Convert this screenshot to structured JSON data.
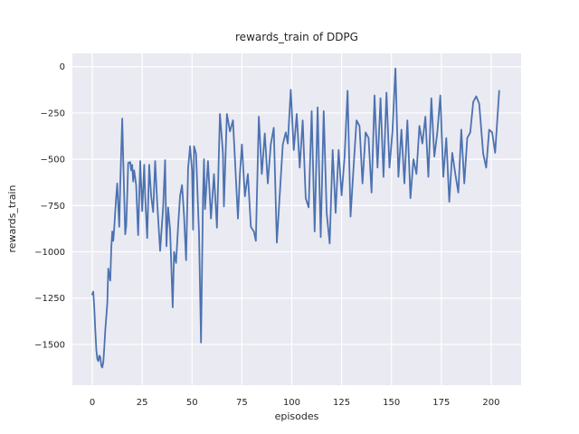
{
  "figure": {
    "background": "#ffffff"
  },
  "chart_data": {
    "type": "line",
    "title": "rewards_train of DDPG",
    "xlabel": "episodes",
    "ylabel": "rewards_train",
    "style": "seaborn-darkgrid",
    "axes_background": "#EAEAF2",
    "grid_color": "#FFFFFF",
    "line_color": "#4C72B0",
    "text_color": "#262626",
    "grid": true,
    "legend": false,
    "xlim": [
      -10,
      215
    ],
    "ylim": [
      -1720,
      72
    ],
    "x_ticks": [
      0,
      25,
      50,
      75,
      100,
      125,
      150,
      175,
      200
    ],
    "y_ticks": [
      0,
      -250,
      -500,
      -750,
      -1000,
      -1250,
      -1500
    ],
    "series": [
      {
        "name": "rewards_train",
        "x": [
          0,
          0.5,
          1,
          1.5,
          2,
          2.5,
          3,
          3.5,
          4,
          4.5,
          5,
          5.5,
          6,
          6.5,
          7,
          7.5,
          8,
          8.5,
          9,
          9.5,
          10,
          10.5,
          11,
          11.5,
          12,
          12.5,
          13,
          13.5,
          14,
          15,
          15.5,
          16,
          16.5,
          17,
          17.5,
          18,
          19,
          19.5,
          20,
          20.5,
          21,
          22,
          23,
          24,
          25,
          26,
          26.5,
          27.5,
          28.5,
          29.5,
          30.5,
          31.5,
          32.5,
          34,
          35.5,
          36.5,
          37.2,
          38,
          39,
          40.3,
          41,
          42,
          43,
          44,
          45,
          46,
          47,
          48,
          49,
          50,
          50.5,
          51,
          52,
          53.5,
          54.5,
          55.5,
          56,
          56.5,
          58,
          59.5,
          61,
          62.5,
          64,
          65.5,
          66,
          67.5,
          69,
          70.5,
          71.5,
          73,
          74,
          75,
          76.5,
          78,
          79.5,
          81,
          82,
          83.5,
          85,
          86.5,
          88,
          89.5,
          91,
          92.5,
          95.5,
          97,
          98,
          99.5,
          101,
          102.5,
          104,
          105.5,
          107,
          108.5,
          110,
          111.5,
          113,
          114.5,
          116,
          117.5,
          119,
          120.5,
          122,
          123.5,
          125,
          126.5,
          128,
          129.5,
          131,
          132.5,
          134,
          135.5,
          137,
          138.5,
          140,
          141.5,
          143,
          144.5,
          146,
          147.5,
          149,
          150.5,
          152,
          153.5,
          155,
          156.5,
          158,
          159.5,
          161,
          162.5,
          164,
          165.5,
          167,
          168.5,
          170,
          171.5,
          173,
          174.5,
          176,
          177.5,
          179,
          180.5,
          182,
          183.5,
          185,
          186.5,
          188,
          189.5,
          191,
          192.5,
          194,
          196,
          197.5,
          199,
          200.5,
          202,
          204
        ],
        "y": [
          -1230,
          -1215,
          -1300,
          -1430,
          -1530,
          -1580,
          -1590,
          -1560,
          -1570,
          -1615,
          -1625,
          -1595,
          -1515,
          -1420,
          -1350,
          -1280,
          -1090,
          -1130,
          -1155,
          -980,
          -890,
          -940,
          -870,
          -780,
          -700,
          -630,
          -750,
          -865,
          -640,
          -280,
          -500,
          -700,
          -905,
          -860,
          -700,
          -520,
          -515,
          -560,
          -530,
          -620,
          -560,
          -640,
          -910,
          -510,
          -780,
          -530,
          -700,
          -925,
          -530,
          -700,
          -785,
          -510,
          -730,
          -995,
          -760,
          -505,
          -970,
          -760,
          -880,
          -1300,
          -1000,
          -1060,
          -870,
          -700,
          -640,
          -800,
          -1045,
          -550,
          -430,
          -560,
          -880,
          -430,
          -470,
          -900,
          -1490,
          -700,
          -500,
          -770,
          -510,
          -820,
          -580,
          -870,
          -255,
          -465,
          -755,
          -255,
          -350,
          -290,
          -500,
          -820,
          -580,
          -420,
          -700,
          -580,
          -865,
          -890,
          -940,
          -270,
          -580,
          -360,
          -630,
          -420,
          -330,
          -950,
          -420,
          -355,
          -415,
          -125,
          -450,
          -255,
          -545,
          -290,
          -710,
          -760,
          -240,
          -890,
          -220,
          -920,
          -240,
          -790,
          -955,
          -450,
          -790,
          -450,
          -695,
          -485,
          -130,
          -810,
          -545,
          -290,
          -320,
          -630,
          -355,
          -385,
          -680,
          -155,
          -545,
          -170,
          -595,
          -140,
          -545,
          -350,
          -10,
          -595,
          -340,
          -630,
          -290,
          -710,
          -500,
          -580,
          -320,
          -415,
          -270,
          -595,
          -170,
          -485,
          -355,
          -155,
          -595,
          -385,
          -730,
          -465,
          -580,
          -680,
          -340,
          -630,
          -385,
          -355,
          -190,
          -160,
          -200,
          -470,
          -545,
          -340,
          -355,
          -465,
          -130
        ]
      }
    ]
  }
}
